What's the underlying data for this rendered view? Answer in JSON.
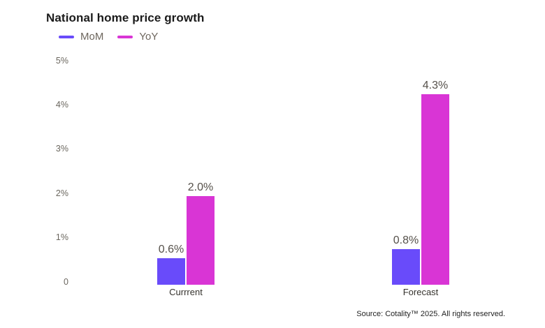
{
  "chart_data": {
    "type": "bar",
    "title": "National home price growth",
    "categories": [
      "Currrent",
      "Forecast"
    ],
    "series": [
      {
        "name": "MoM",
        "color": "#694BFA",
        "values": [
          0.6,
          0.8
        ],
        "labels": [
          "0.6%",
          "0.8%"
        ]
      },
      {
        "name": "YoY",
        "color": "#D935D5",
        "values": [
          2.0,
          4.3
        ],
        "labels": [
          "2.0%",
          "4.3%"
        ]
      }
    ],
    "ylim": [
      0,
      5
    ],
    "y_ticks": [
      {
        "value": 0,
        "label": "0"
      },
      {
        "value": 1,
        "label": "1%"
      },
      {
        "value": 2,
        "label": "2%"
      },
      {
        "value": 3,
        "label": "3%"
      },
      {
        "value": 4,
        "label": "4%"
      },
      {
        "value": 5,
        "label": "5%"
      }
    ],
    "grid": false,
    "legend_position": "top-left"
  },
  "source": "Source: Cotality™ 2025. All rights reserved."
}
